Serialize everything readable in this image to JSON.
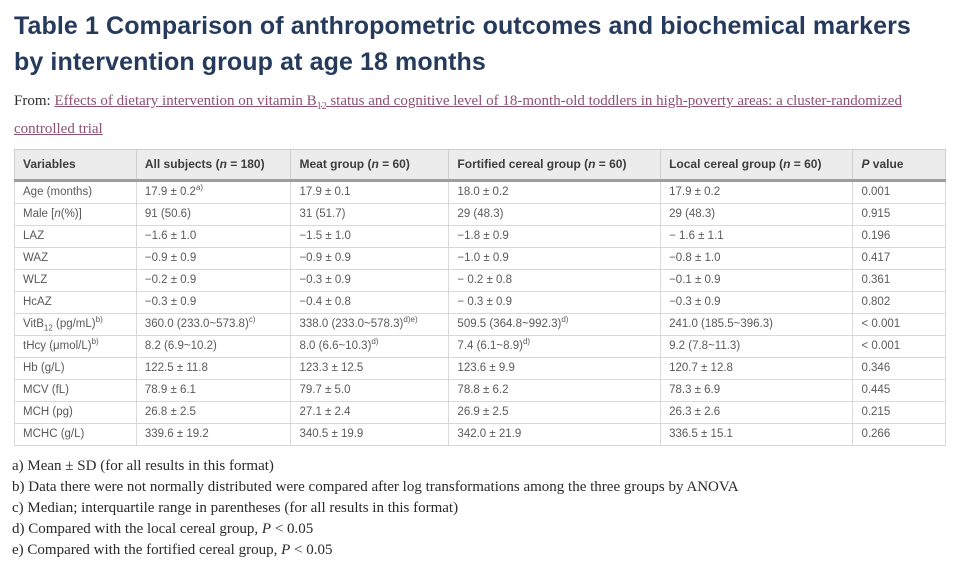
{
  "page": {
    "title": "Table 1 Comparison of anthropometric outcomes and biochemical markers by intervention group at age 18 months",
    "from_label": "From: ",
    "source_link": "Effects of dietary intervention on vitamin B_{12} status and cognitive level of 18-month-old toddlers in high-poverty areas: a cluster-randomized controlled trial"
  },
  "colors": {
    "title_navy": "#253a5c",
    "link_plum": "#8e5073",
    "header_bg": "#ececec",
    "header_text": "#3d3d3d",
    "cell_text": "#5a5a5a",
    "border_gray": "#d9d9d9",
    "header_rule_gray": "#9e9e9e"
  },
  "table": {
    "headers": [
      "Variables",
      "All subjects (*n* = 180)",
      "Meat group (*n* = 60)",
      "Fortified cereal group (*n* = 60)",
      "Local cereal group (*n* = 60)",
      "*P* value"
    ],
    "rows": [
      [
        "Age (months)",
        "17.9 ± 0.2^{a)}",
        "17.9 ± 0.1",
        "18.0 ± 0.2",
        "17.9 ± 0.2",
        "0.001"
      ],
      [
        "Male [*n*(%)]",
        "91 (50.6)",
        "31 (51.7)",
        "29 (48.3)",
        "29 (48.3)",
        "0.915"
      ],
      [
        "LAZ",
        "−1.6 ± 1.0",
        "−1.5 ± 1.0",
        "−1.8 ± 0.9",
        "− 1.6 ± 1.1",
        "0.196"
      ],
      [
        "WAZ",
        "−0.9 ± 0.9",
        "−0.9 ± 0.9",
        "−1.0 ± 0.9",
        "−0.8 ± 1.0",
        "0.417"
      ],
      [
        "WLZ",
        "−0.2 ± 0.9",
        "−0.3 ± 0.9",
        "− 0.2 ± 0.8",
        "−0.1 ± 0.9",
        "0.361"
      ],
      [
        "HcAZ",
        "−0.3 ± 0.9",
        "−0.4 ± 0.8",
        "− 0.3 ± 0.9",
        "−0.3 ± 0.9",
        "0.802"
      ],
      [
        "VitB_{12} (pg/mL)^{b)}",
        "360.0 (233.0~573.8)^{c)}",
        "338.0 (233.0~578.3)^{d)e)}",
        "509.5 (364.8~992.3)^{d)}",
        "241.0 (185.5~396.3)",
        "< 0.001"
      ],
      [
        "tHcy (μmol/L)^{b)}",
        "8.2 (6.9~10.2)",
        "8.0 (6.6~10.3)^{d)}",
        "7.4 (6.1~8.9)^{d)}",
        "9.2 (7.8~11.3)",
        "< 0.001"
      ],
      [
        "Hb (g/L)",
        "122.5 ± 11.8",
        "123.3 ± 12.5",
        "123.6 ± 9.9",
        "120.7 ± 12.8",
        "0.346"
      ],
      [
        "MCV (fL)",
        "78.9 ± 6.1",
        "79.7 ± 5.0",
        "78.8 ± 6.2",
        "78.3 ± 6.9",
        "0.445"
      ],
      [
        "MCH (pg)",
        "26.8 ± 2.5",
        "27.1 ± 2.4",
        "26.9 ± 2.5",
        "26.3 ± 2.6",
        "0.215"
      ],
      [
        "MCHC (g/L)",
        "339.6 ± 19.2",
        "340.5 ± 19.9",
        "342.0 ± 21.9",
        "336.5 ± 15.1",
        "0.266"
      ]
    ]
  },
  "footnotes": [
    "a) Mean ± SD (for all results in this format)",
    "b) Data there were not normally distributed were compared after log transformations among the three groups by ANOVA",
    "c) Median; interquartile range in parentheses (for all results in this format)",
    "d) Compared with the local cereal group, *P* < 0.05",
    "e) Compared with the fortified cereal group, *P* < 0.05"
  ]
}
